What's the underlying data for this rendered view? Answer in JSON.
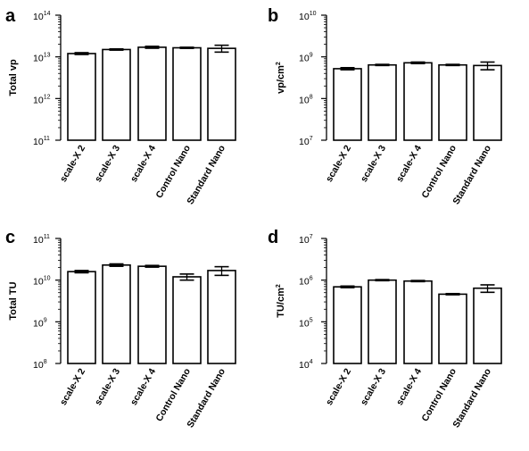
{
  "chart_data": [
    {
      "panel": "a",
      "type": "bar",
      "scale": "log",
      "ylabel": "Total vp",
      "ylabel_sup": "",
      "ylim_exponents": [
        11,
        14
      ],
      "ytick_base": "10",
      "ytick_exponents": [
        "11",
        "12",
        "13",
        "14"
      ],
      "categories": [
        "scale-X 2",
        "scale-X 3",
        "scale-X 4",
        "Control Nano",
        "Standard Nano"
      ],
      "values": [
        12000000000000.0,
        15000000000000.0,
        17000000000000.0,
        16500000000000.0,
        16000000000000.0
      ],
      "errors": [
        600000000000.0,
        500000000000.0,
        900000000000.0,
        500000000000.0,
        3000000000000.0
      ]
    },
    {
      "panel": "b",
      "type": "bar",
      "scale": "log",
      "ylabel": "vp/cm",
      "ylabel_sup": "2",
      "ylim_exponents": [
        7,
        10
      ],
      "ytick_base": "10",
      "ytick_exponents": [
        "7",
        "8",
        "9",
        "10"
      ],
      "categories": [
        "scale-X 2",
        "scale-X 3",
        "scale-X 4",
        "Control Nano",
        "Standard Nano"
      ],
      "values": [
        520000000.0,
        640000000.0,
        720000000.0,
        640000000.0,
        620000000.0
      ],
      "errors": [
        30000000.0,
        20000000.0,
        30000000.0,
        20000000.0,
        130000000.0
      ]
    },
    {
      "panel": "c",
      "type": "bar",
      "scale": "log",
      "ylabel": "Total TU",
      "ylabel_sup": "",
      "ylim_exponents": [
        8,
        11
      ],
      "ytick_base": "10",
      "ytick_exponents": [
        "8",
        "9",
        "10",
        "11"
      ],
      "categories": [
        "scale-X 2",
        "scale-X 3",
        "scale-X 4",
        "Control Nano",
        "Standard Nano"
      ],
      "values": [
        16000000000.0,
        23000000000.0,
        21500000000.0,
        12000000000.0,
        17000000000.0
      ],
      "errors": [
        1000000000.0,
        1500000000.0,
        1000000000.0,
        2000000000.0,
        4000000000.0
      ]
    },
    {
      "panel": "d",
      "type": "bar",
      "scale": "log",
      "ylabel": "TU/cm",
      "ylabel_sup": "2",
      "ylim_exponents": [
        4,
        7
      ],
      "ytick_base": "10",
      "ytick_exponents": [
        "4",
        "5",
        "6",
        "7"
      ],
      "categories": [
        "scale-X 2",
        "scale-X 3",
        "scale-X 4",
        "Control Nano",
        "Standard Nano"
      ],
      "values": [
        690000.0,
        1000000.0,
        950000.0,
        460000.0,
        640000.0
      ],
      "errors": [
        30000.0,
        30000.0,
        30000.0,
        15000.0,
        130000.0
      ]
    }
  ]
}
